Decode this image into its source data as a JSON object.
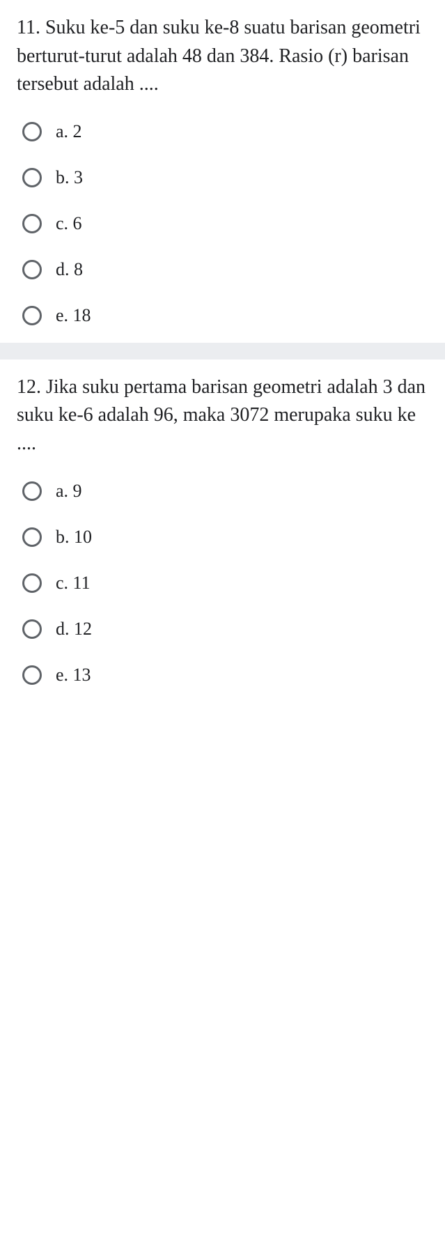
{
  "questions": [
    {
      "text": "11. Suku ke-5 dan suku ke-8 suatu barisan geometri berturut-turut adalah 48 dan 384. Rasio (r) barisan tersebut adalah ....",
      "options": [
        {
          "label": "a. 2"
        },
        {
          "label": "b. 3"
        },
        {
          "label": "c. 6"
        },
        {
          "label": "d. 8"
        },
        {
          "label": "e. 18"
        }
      ]
    },
    {
      "text": "12. Jika suku pertama barisan geometri adalah 3 dan suku ke-6 adalah 96, maka 3072 merupaka suku ke ....",
      "options": [
        {
          "label": "a. 9"
        },
        {
          "label": "b. 10"
        },
        {
          "label": "c. 11"
        },
        {
          "label": "d. 12"
        },
        {
          "label": "e. 13"
        }
      ]
    }
  ],
  "colors": {
    "text": "#202124",
    "radio_border": "#5f6368",
    "background": "#ffffff",
    "divider": "#ebedf0"
  }
}
